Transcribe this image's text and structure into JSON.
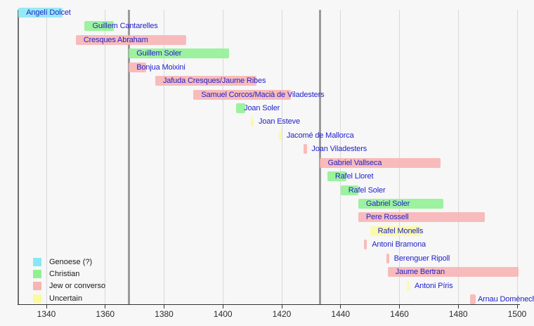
{
  "chart_data": {
    "type": "bar",
    "subtype": "timeline_gantt",
    "title": "",
    "xlabel": "",
    "ylabel": "",
    "grid": true,
    "legend_position": "bottom-left",
    "x_axis": {
      "min": 1330,
      "max": 1503,
      "tick_years": [
        1340,
        1360,
        1380,
        1400,
        1420,
        1440,
        1460,
        1480,
        1500
      ]
    },
    "event_years": [
      1368,
      1433
    ],
    "people": [
      {
        "name": "Angelí Dolcet",
        "group": "genoese",
        "start": 1330.5,
        "end": 1345.5
      },
      {
        "name": "Guillem Cantarelles",
        "group": "christian",
        "start": 1353,
        "end": 1363
      },
      {
        "name": "Cresques Abraham",
        "group": "jew",
        "start": 1350,
        "end": 1387.5
      },
      {
        "name": "Guillem Soler",
        "group": "christian",
        "start": 1368,
        "end": 1402
      },
      {
        "name": "Bonjua Moixini",
        "group": "jew",
        "start": 1368,
        "end": 1374
      },
      {
        "name": "Jafuda Cresques/Jaume Ribes",
        "group": "jew",
        "start": 1377,
        "end": 1411.5
      },
      {
        "name": "Samuel Corcos/Macià de Viladesters",
        "group": "jew",
        "start": 1390,
        "end": 1423
      },
      {
        "name": "Joan Soler",
        "group": "christian",
        "start": 1404.5,
        "end": 1407.5
      },
      {
        "name": "Joan Esteve",
        "group": "uncertain",
        "start": 1409.5,
        "end": 1410.5
      },
      {
        "name": "Jacomé de Mallorca",
        "group": "uncertain",
        "start": 1419,
        "end": 1420
      },
      {
        "name": "Joan Viladesters",
        "group": "jew",
        "start": 1427.5,
        "end": 1428.5
      },
      {
        "name": "Gabriel Vallseca",
        "group": "jew",
        "start": 1433,
        "end": 1474
      },
      {
        "name": "Rafel Lloret",
        "group": "christian",
        "start": 1435.5,
        "end": 1442
      },
      {
        "name": "Rafel Soler",
        "group": "christian",
        "start": 1440,
        "end": 1446
      },
      {
        "name": "Gabriel Soler",
        "group": "christian",
        "start": 1446,
        "end": 1475
      },
      {
        "name": "Pere Rossell",
        "group": "jew",
        "start": 1446,
        "end": 1489
      },
      {
        "name": "Rafel Monells",
        "group": "uncertain",
        "start": 1450,
        "end": 1467.5
      },
      {
        "name": "Antoni Bramona",
        "group": "jew",
        "start": 1448,
        "end": 1449
      },
      {
        "name": "Berenguer Ripoll",
        "group": "jew",
        "start": 1455.5,
        "end": 1456.5
      },
      {
        "name": "Jaume Bertran",
        "group": "jew",
        "start": 1456,
        "end": 1500.5
      },
      {
        "name": "Antoni Píris",
        "group": "uncertain",
        "start": 1462.5,
        "end": 1463.5
      },
      {
        "name": "Arnau Domènech",
        "group": "jew",
        "start": 1484,
        "end": 1486
      }
    ],
    "legend": [
      {
        "label": "Genoese (?)",
        "group": "genoese"
      },
      {
        "label": "Christian",
        "group": "christian"
      },
      {
        "label": "Jew or converso",
        "group": "jew"
      },
      {
        "label": "Uncertain",
        "group": "uncertain"
      }
    ]
  },
  "colors": {
    "genoese": "#87e8f5",
    "christian": "#90f192",
    "jew": "#f8b3b3",
    "uncertain": "#fafaa0",
    "grid": "#d9d9d9",
    "event_line": "#9a9a9a",
    "name_text": "#2222cc",
    "axis_text": "#2b2b2b",
    "background": "#f7f7f7"
  }
}
